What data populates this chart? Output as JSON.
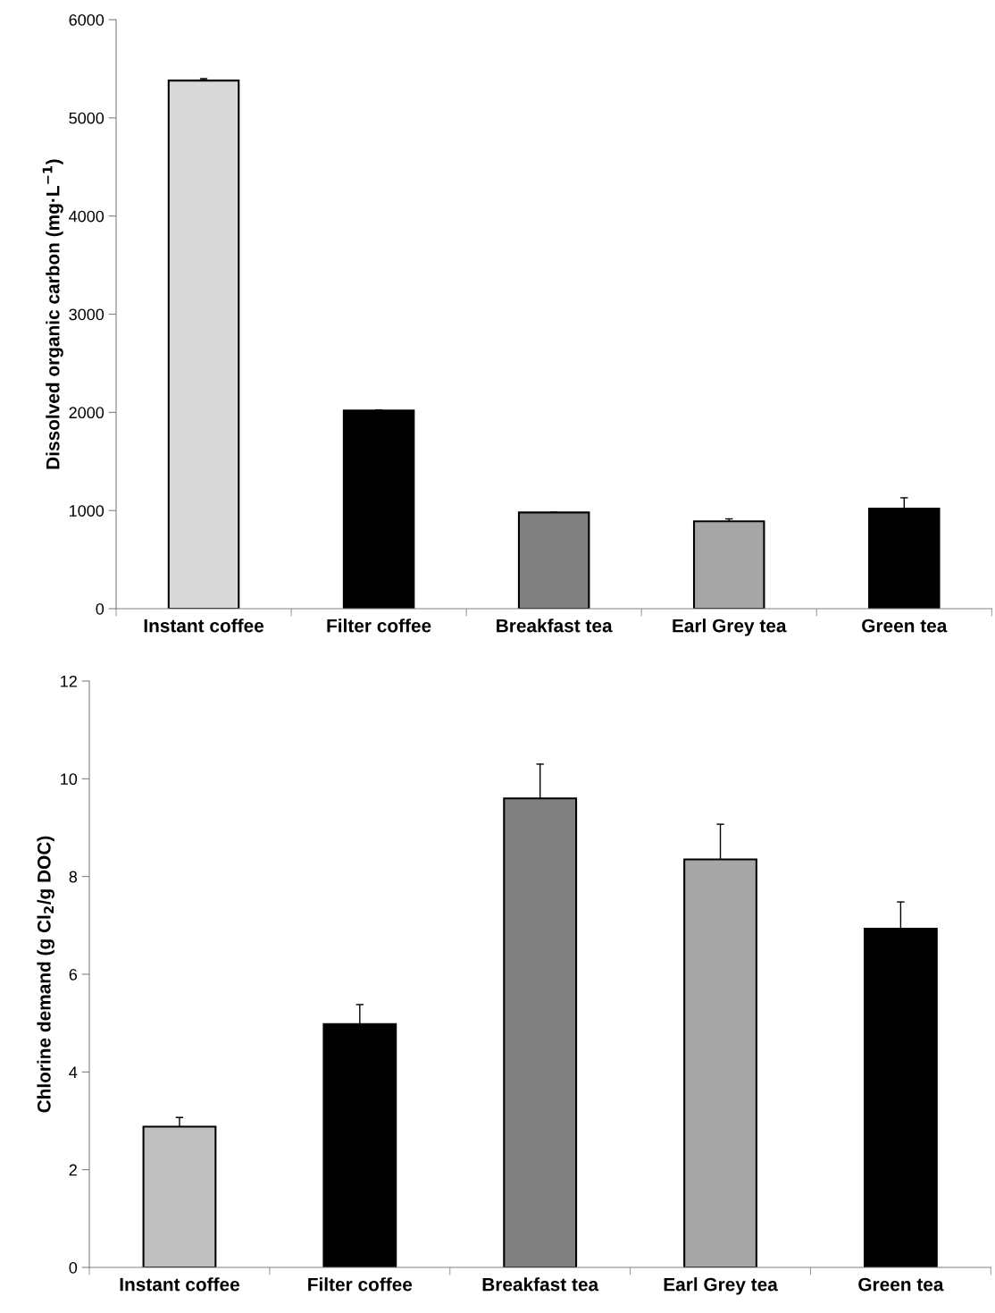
{
  "chart_data": [
    {
      "type": "bar",
      "ylabel": "Dissolved organic carbon (mg·L$^{−1}$)",
      "categories": [
        "Instant coffee",
        "Filter coffee",
        "Breakfast tea",
        "Earl Grey tea",
        "Green tea"
      ],
      "values": [
        5380,
        2020,
        980,
        890,
        1020
      ],
      "errors": [
        20,
        5,
        3,
        25,
        110
      ],
      "colors": [
        "#d9d9d9",
        "#000000",
        "#808080",
        "#a6a6a6",
        "#000000"
      ],
      "ylim": [
        0,
        6000
      ],
      "yticks": [
        0,
        1000,
        2000,
        3000,
        4000,
        5000,
        6000
      ],
      "grid": false,
      "legend": false
    },
    {
      "type": "bar",
      "ylabel": "Chlorine demand (g Cl$_{2}$/g DOC)",
      "categories": [
        "Instant coffee",
        "Filter coffee",
        "Breakfast tea",
        "Earl Grey tea",
        "Green tea"
      ],
      "values": [
        2.88,
        4.98,
        9.6,
        8.35,
        6.93
      ],
      "errors": [
        0.19,
        0.4,
        0.7,
        0.72,
        0.55
      ],
      "colors": [
        "#bfbfbf",
        "#000000",
        "#808080",
        "#a6a6a6",
        "#000000"
      ],
      "ylim": [
        0,
        12
      ],
      "yticks": [
        0,
        2,
        4,
        6,
        8,
        10,
        12
      ],
      "grid": false,
      "legend": false
    }
  ]
}
